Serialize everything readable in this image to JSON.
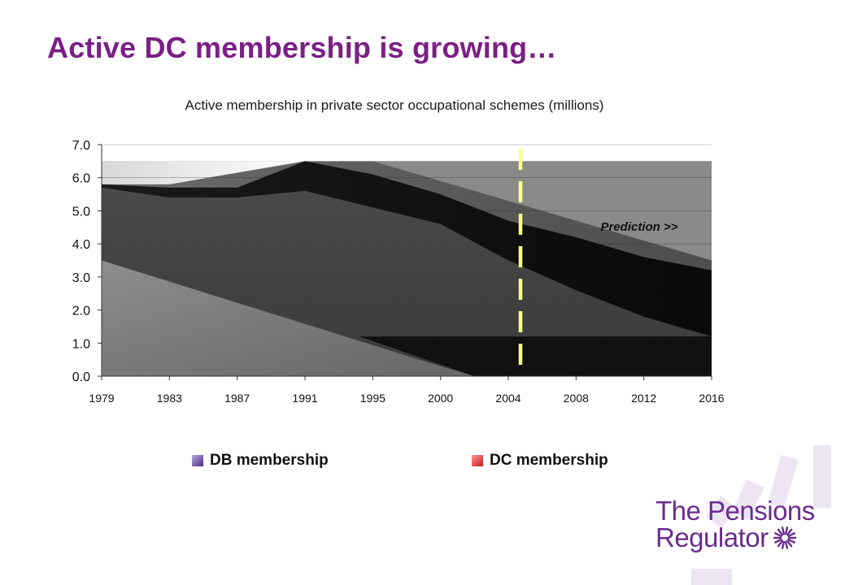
{
  "slide": {
    "title": "Active DC membership is growing…"
  },
  "logo": {
    "line1": "The Pensions",
    "line2": "Regulator"
  },
  "colors": {
    "title": "#7b1f86",
    "logo": "#6a2c8f",
    "divider": "#ffff88",
    "db": "#4a2d80",
    "dc": "#c41b1b"
  },
  "chart_data": {
    "type": "area",
    "title": "Active membership in private sector occupational schemes (millions)",
    "xlabel": "",
    "ylabel": "",
    "ylim": [
      0,
      7
    ],
    "y_ticks": [
      "0.0",
      "1.0",
      "2.0",
      "3.0",
      "4.0",
      "5.0",
      "6.0",
      "7.0"
    ],
    "categories": [
      "1979",
      "1983",
      "1987",
      "1991",
      "1995",
      "2000",
      "2004",
      "2008",
      "2012",
      "2016"
    ],
    "series": [
      {
        "name": "DB membership",
        "values": [
          5.7,
          5.4,
          5.4,
          5.6,
          5.1,
          4.6,
          3.5,
          2.6,
          1.8,
          1.2
        ]
      },
      {
        "name": "DC membership",
        "values": [
          0.1,
          0.3,
          0.3,
          0.9,
          1.0,
          0.9,
          1.2,
          1.6,
          1.8,
          2.0
        ]
      }
    ],
    "prediction_from": "2004",
    "annotation": "Prediction >>",
    "legend_position": "bottom",
    "grid": true
  }
}
